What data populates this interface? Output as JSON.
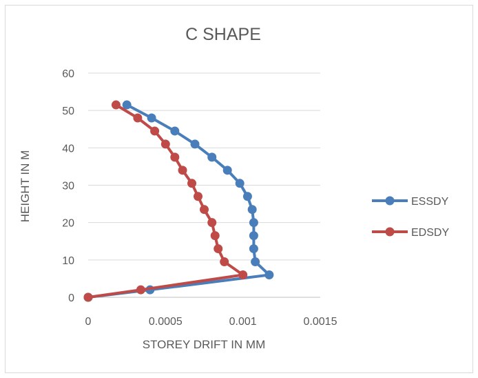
{
  "chart_data": {
    "type": "scatter",
    "title": "C SHAPE",
    "xlabel": "STOREY DRIFT IN MM",
    "ylabel": "HEIGHT IN M",
    "xlim": [
      0,
      0.0015
    ],
    "ylim": [
      0,
      60
    ],
    "xticks": [
      "0",
      "0.0005",
      "0.001",
      "0.0015"
    ],
    "yticks": [
      "0",
      "10",
      "20",
      "30",
      "40",
      "50",
      "60"
    ],
    "xtick_values": [
      0,
      0.0005,
      0.001,
      0.0015
    ],
    "ytick_values": [
      0,
      10,
      20,
      30,
      40,
      50,
      60
    ],
    "grid": "horizontal",
    "legend_position": "right",
    "series": [
      {
        "name": "ESSDY",
        "color": "#4a7ebb",
        "points": [
          [
            0,
            0
          ],
          [
            0.0004,
            2
          ],
          [
            0.00117,
            6
          ],
          [
            0.00108,
            9.5
          ],
          [
            0.00107,
            13
          ],
          [
            0.00107,
            16.5
          ],
          [
            0.00107,
            20
          ],
          [
            0.00106,
            23.5
          ],
          [
            0.00103,
            27
          ],
          [
            0.00098,
            30.5
          ],
          [
            0.0009,
            34
          ],
          [
            0.0008,
            37.5
          ],
          [
            0.00069,
            41
          ],
          [
            0.00056,
            44.5
          ],
          [
            0.00041,
            48
          ],
          [
            0.00025,
            51.5
          ]
        ]
      },
      {
        "name": "EDSDY",
        "color": "#be4b48",
        "points": [
          [
            0,
            0
          ],
          [
            0.00034,
            2
          ],
          [
            0.001,
            6
          ],
          [
            0.00088,
            9.5
          ],
          [
            0.00084,
            13
          ],
          [
            0.00082,
            16.5
          ],
          [
            0.0008,
            20
          ],
          [
            0.00075,
            23.5
          ],
          [
            0.00071,
            27
          ],
          [
            0.00067,
            30.5
          ],
          [
            0.00061,
            34
          ],
          [
            0.00056,
            37.5
          ],
          [
            0.0005,
            41
          ],
          [
            0.00043,
            44.5
          ],
          [
            0.00032,
            48
          ],
          [
            0.00018,
            51.5
          ]
        ]
      }
    ]
  }
}
